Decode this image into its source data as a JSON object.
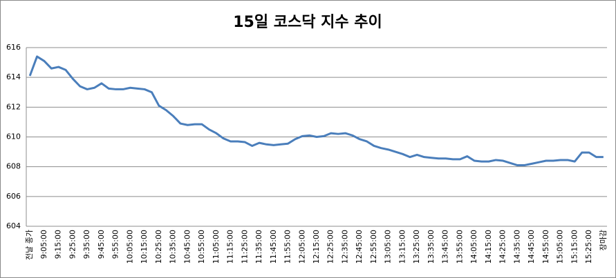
{
  "chart_data": {
    "type": "line",
    "title": "15일 코스닥 지수 추이",
    "categories": [
      "전날 종가",
      null,
      "9:05:00",
      null,
      "9:15:00",
      null,
      "9:25:00",
      null,
      "9:35:00",
      null,
      "9:45:00",
      null,
      "9:55:00",
      null,
      "10:05:00",
      null,
      "10:15:00",
      null,
      "10:25:00",
      null,
      "10:35:00",
      null,
      "10:45:00",
      null,
      "10:55:00",
      null,
      "11:05:00",
      null,
      "11:15:00",
      null,
      "11:25:00",
      null,
      "11:35:00",
      null,
      "11:45:00",
      null,
      "11:55:00",
      null,
      "12:05:00",
      null,
      "12:15:00",
      null,
      "12:25:00",
      null,
      "12:35:00",
      null,
      "12:45:00",
      null,
      "12:55:00",
      null,
      "13:05:00",
      null,
      "13:15:00",
      null,
      "13:25:00",
      null,
      "13:35:00",
      null,
      "13:45:00",
      null,
      "13:55:00",
      null,
      "14:05:00",
      null,
      "14:15:00",
      null,
      "14:25:00",
      null,
      "14:35:00",
      null,
      "14:45:00",
      null,
      "14:55:00",
      null,
      "15:05:00",
      null,
      "15:15:00",
      null,
      "15:25:00",
      null,
      "장마감"
    ],
    "values": [
      614.1,
      615.4,
      615.1,
      614.6,
      614.7,
      614.5,
      613.9,
      613.4,
      613.2,
      613.3,
      613.6,
      613.25,
      613.2,
      613.2,
      613.3,
      613.25,
      613.2,
      613.0,
      612.1,
      611.8,
      611.4,
      610.9,
      610.8,
      610.85,
      610.85,
      610.5,
      610.25,
      609.9,
      609.7,
      609.7,
      609.65,
      609.4,
      609.6,
      609.5,
      609.45,
      609.5,
      609.55,
      609.85,
      610.05,
      610.1,
      610.0,
      610.05,
      610.25,
      610.2,
      610.25,
      610.1,
      609.85,
      609.7,
      609.4,
      609.25,
      609.15,
      609.0,
      608.85,
      608.65,
      608.8,
      608.65,
      608.6,
      608.55,
      608.55,
      608.5,
      608.5,
      608.7,
      608.4,
      608.35,
      608.35,
      608.45,
      608.4,
      608.25,
      608.1,
      608.1,
      608.2,
      608.3,
      608.4,
      608.4,
      608.45,
      608.45,
      608.35,
      608.95,
      608.95,
      608.65,
      608.65
    ],
    "color": "#4a7ebb",
    "ylim": [
      604,
      616
    ],
    "yticks": [
      604,
      606,
      608,
      610,
      612,
      614,
      616
    ],
    "grid": true
  }
}
